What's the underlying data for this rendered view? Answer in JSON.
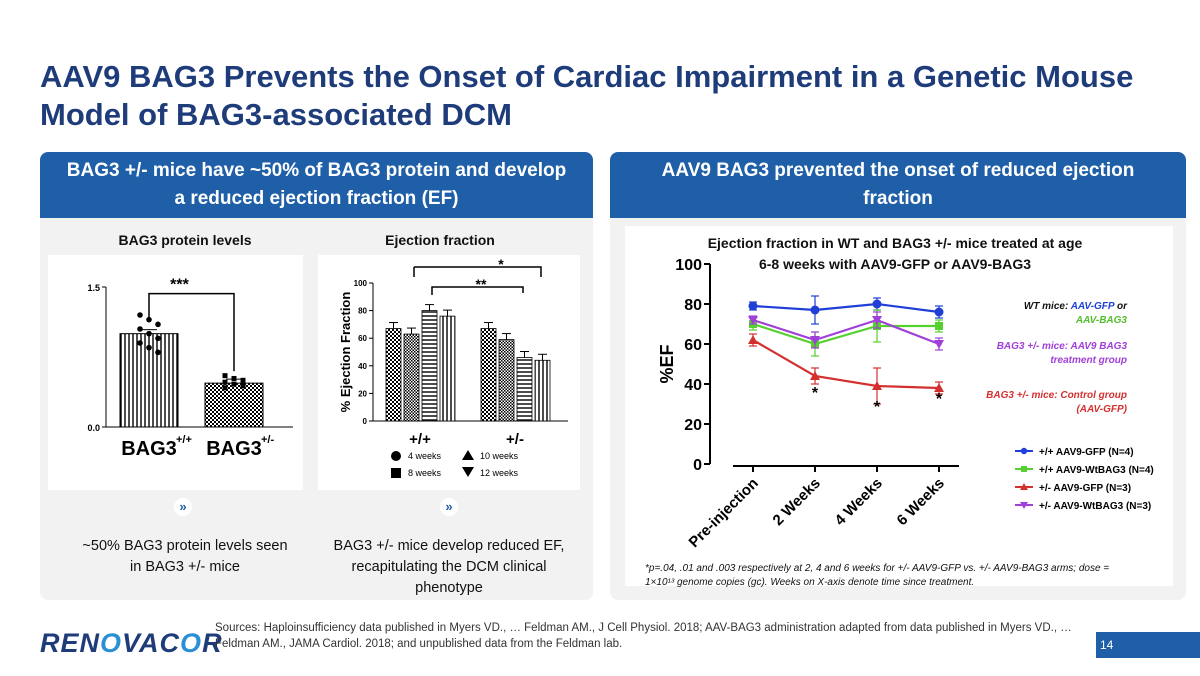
{
  "slide": {
    "title": "AAV9 BAG3 Prevents the Onset of Cardiac Impairment in a Genetic Mouse Model of BAG3-associated DCM",
    "page_number": "14",
    "logo": {
      "pre": "REN",
      "o": "O",
      "post": "VAC",
      "o2": "O",
      "end": "R"
    },
    "sources": "Sources: Haploinsufficiency data published in Myers VD., … Feldman AM., J Cell Physiol. 2018; AAV-BAG3 administration adapted from data published in Myers VD., … Feldman AM., JAMA Cardiol. 2018; and unpublished data from the Feldman lab."
  },
  "left_panel": {
    "header": "BAG3 +/- mice have ~50% of BAG3 protein and develop a reduced ejection fraction (EF)",
    "protein_subhead": "BAG3 protein levels",
    "ef_subhead": "Ejection fraction",
    "protein_caption": "~50% BAG3 protein levels seen in BAG3 +/- mice",
    "ef_caption": "BAG3 +/- mice develop reduced EF, recapitulating the DCM clinical phenotype"
  },
  "right_panel": {
    "header": "AAV9 BAG3 prevented the onset of reduced ejection fraction",
    "chart_title": "Ejection fraction in WT and BAG3 +/- mice treated at age 6-8 weeks with AAV9-GFP or AAV9-BAG3",
    "annotation_wt_a": "WT mice: ",
    "annotation_wt_b": "AAV-GFP",
    "annotation_wt_c": " or",
    "annotation_wt_d": "AAV-BAG3",
    "annotation_bag3_a": "BAG3 +/- mice: AAV9 BAG3",
    "annotation_bag3_b": "treatment group",
    "annotation_ctrl_a": "BAG3 +/- mice: Control group",
    "annotation_ctrl_b": "(AAV-GFP)",
    "footnote": "*p=.04, .01 and .003 respectively at 2, 4 and 6 weeks for +/- AAV9-GFP vs. +/- AAV9-BAG3 arms; dose = 1×10¹³ genome copies (gc). Weeks on X-axis denote time since treatment."
  },
  "chart_data": [
    {
      "type": "bar",
      "categories": [
        "BAG3+/+",
        "BAG3+/-"
      ],
      "cat_main": [
        "BAG3",
        "BAG3"
      ],
      "cat_sup": [
        "+/+",
        "+/-"
      ],
      "values": [
        1.0,
        0.47
      ],
      "ylim": [
        0.0,
        1.5
      ],
      "yticks": [
        "0.0",
        "1.5"
      ],
      "significance": "***",
      "points": [
        [
          1.2,
          1.15,
          1.1,
          1.05,
          1.0,
          0.95,
          0.9,
          0.85,
          0.8
        ],
        [
          0.55,
          0.52,
          0.5,
          0.48,
          0.46,
          0.44,
          0.42
        ]
      ]
    },
    {
      "type": "bar",
      "ylabel": "% Ejection Fraction",
      "ylim": [
        0,
        100
      ],
      "yticks": [
        "0",
        "20",
        "40",
        "60",
        "80",
        "100"
      ],
      "groups": [
        "+/+",
        "+/-"
      ],
      "series": [
        {
          "name": "4 weeks",
          "values": [
            67,
            67
          ],
          "pattern": "check"
        },
        {
          "name": "8 weeks",
          "values": [
            63,
            59
          ],
          "pattern": "check2"
        },
        {
          "name": "10 weeks",
          "values": [
            80,
            46
          ],
          "pattern": "hlines"
        },
        {
          "name": "12 weeks",
          "values": [
            76,
            44
          ],
          "pattern": "vlines"
        }
      ],
      "significance": [
        "*",
        "**"
      ]
    },
    {
      "type": "line",
      "ylabel": "%EF",
      "ylim": [
        0,
        100
      ],
      "yticks": [
        "0",
        "20",
        "40",
        "60",
        "80",
        "100"
      ],
      "categories": [
        "Pre-injection",
        "2 Weeks",
        "4 Weeks",
        "6 Weeks"
      ],
      "series": [
        {
          "name": "+/+ AAV9-GFP (N=4)",
          "values": [
            79,
            77,
            80,
            76
          ],
          "errors": [
            2,
            7,
            3,
            3
          ],
          "color": "#1f3fd6",
          "marker": "circle"
        },
        {
          "name": "+/+ AAV9-WtBAG3 (N=4)",
          "values": [
            70,
            60,
            69,
            69
          ],
          "errors": [
            3,
            6,
            8,
            3
          ],
          "color": "#55d12e",
          "marker": "square"
        },
        {
          "name": "+/- AAV9-GFP (N=3)",
          "values": [
            62,
            44,
            39,
            38
          ],
          "errors": [
            3,
            4,
            9,
            3
          ],
          "color": "#d43030",
          "marker": "triangle"
        },
        {
          "name": "+/- AAV9-WtBAG3 (N=3)",
          "values": [
            72,
            62,
            72,
            60
          ],
          "errors": [
            2,
            4,
            4,
            3
          ],
          "color": "#a040d8",
          "marker": "triangle-down"
        }
      ],
      "significance_labels": [
        "*",
        "*",
        "*"
      ],
      "significance_at": [
        "2 Weeks",
        "4 Weeks",
        "6 Weeks"
      ]
    }
  ]
}
